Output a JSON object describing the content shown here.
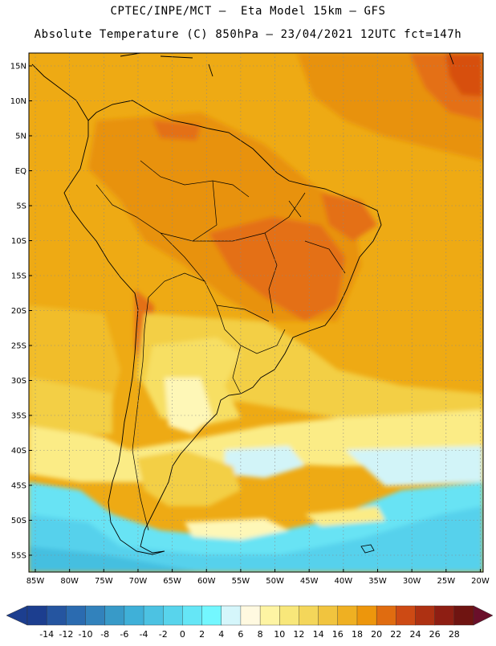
{
  "header": {
    "line1": "CPTEC/INPE/MCT –  Eta Model 15km – GFS",
    "line2": "Absolute Temperature (C) 850hPa – 23/04/2021 12UTC fct=147h"
  },
  "map": {
    "region": "South America",
    "lat_labels": [
      "15N",
      "10N",
      "5N",
      "EQ",
      "5S",
      "10S",
      "15S",
      "20S",
      "25S",
      "30S",
      "35S",
      "40S",
      "45S",
      "50S",
      "55S"
    ],
    "lon_labels": [
      "85W",
      "80W",
      "75W",
      "70W",
      "65W",
      "60W",
      "55W",
      "50W",
      "45W",
      "40W",
      "35W",
      "30W",
      "25W",
      "20W"
    ],
    "colors": {
      "c26": "#c03a0a",
      "c24": "#d75010",
      "c22": "#e46f14",
      "c20": "#e8920f",
      "c18": "#eeaa14",
      "c16": "#f1bd2c",
      "c14": "#f3cf45",
      "c12": "#f7df63",
      "c10": "#fbec86",
      "c8": "#fef7b7",
      "c6": "#fffbe8",
      "c4": "#d2f4f8",
      "c2": "#68e3f4",
      "c0": "#56d1ec",
      "cm2": "#45bfe0"
    }
  },
  "legend": {
    "labels": [
      "-14",
      "-12",
      "-10",
      "-8",
      "-6",
      "-4",
      "-2",
      "0",
      "2",
      "4",
      "6",
      "8",
      "10",
      "12",
      "14",
      "16",
      "18",
      "20",
      "22",
      "24",
      "26",
      "28"
    ],
    "colors": [
      "#1c3e8f",
      "#2555a0",
      "#2b6bb0",
      "#3282bc",
      "#389ac8",
      "#3fb0d8",
      "#4cc2e2",
      "#58d4ec",
      "#65e6f6",
      "#73f7ff",
      "#d5f6fb",
      "#fff9e0",
      "#fef4a3",
      "#f8e77a",
      "#f4d65a",
      "#f1c43e",
      "#efb022",
      "#ed960c",
      "#e06c10",
      "#cd4a14",
      "#ae3112",
      "#8e1e13",
      "#6f1411"
    ]
  }
}
